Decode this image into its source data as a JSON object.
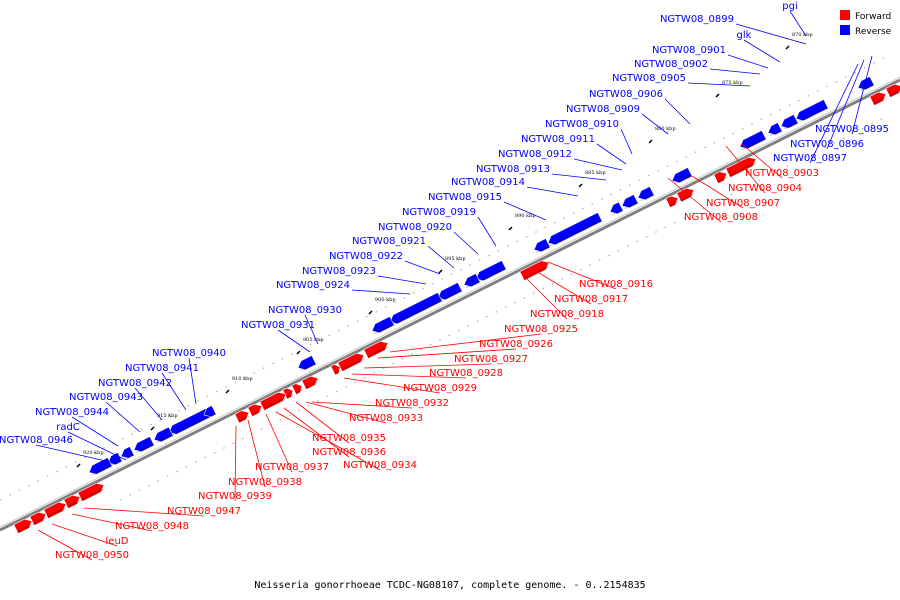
{
  "caption": "Neisseria gonorrhoeae TCDC-NG08107, complete genome. - 0..2154835",
  "legend": {
    "forward_label": "Forward",
    "reverse_label": "Reverse",
    "forward_color": "#ff0000",
    "reverse_color": "#0000ff"
  },
  "colors": {
    "forward": "#ff0000",
    "reverse": "#0000ff",
    "backbone": "#808080"
  },
  "ticks": [
    "870 kbp",
    "875 kbp",
    "880 kbp",
    "885 kbp",
    "890 kbp",
    "895 kbp",
    "900 kbp",
    "905 kbp",
    "910 kbp",
    "915 kbp",
    "920 kbp"
  ],
  "reverse_genes": [
    "NGTW08_0899",
    "pgi",
    "glk",
    "NGTW08_0901",
    "NGTW08_0902",
    "NGTW08_0905",
    "NGTW08_0906",
    "NGTW08_0909",
    "NGTW08_0910",
    "NGTW08_0911",
    "NGTW08_0912",
    "NGTW08_0913",
    "NGTW08_0914",
    "NGTW08_0915",
    "NGTW08_0919",
    "NGTW08_0920",
    "NGTW08_0921",
    "NGTW08_0922",
    "NGTW08_0923",
    "NGTW08_0924",
    "NGTW08_0930",
    "NGTW08_0931",
    "NGTW08_0940",
    "NGTW08_0941",
    "NGTW08_0942",
    "NGTW08_0943",
    "NGTW08_0944",
    "radC",
    "NGTW08_0946",
    "NGTW08_0895",
    "NGTW08_0896",
    "NGTW08_0897"
  ],
  "forward_genes": [
    "NGTW08_0903",
    "NGTW08_0904",
    "NGTW08_0907",
    "NGTW08_0908",
    "NGTW08_0916",
    "NGTW08_0917",
    "NGTW08_0918",
    "NGTW08_0925",
    "NGTW08_0926",
    "NGTW08_0927",
    "NGTW08_0928",
    "NGTW08_0929",
    "NGTW08_0932",
    "NGTW08_0933",
    "NGTW08_0935",
    "NGTW08_0936",
    "NGTW08_0934",
    "NGTW08_0937",
    "NGTW08_0938",
    "NGTW08_0939",
    "NGTW08_0947",
    "NGTW08_0948",
    "leuD",
    "NGTW08_0950"
  ]
}
